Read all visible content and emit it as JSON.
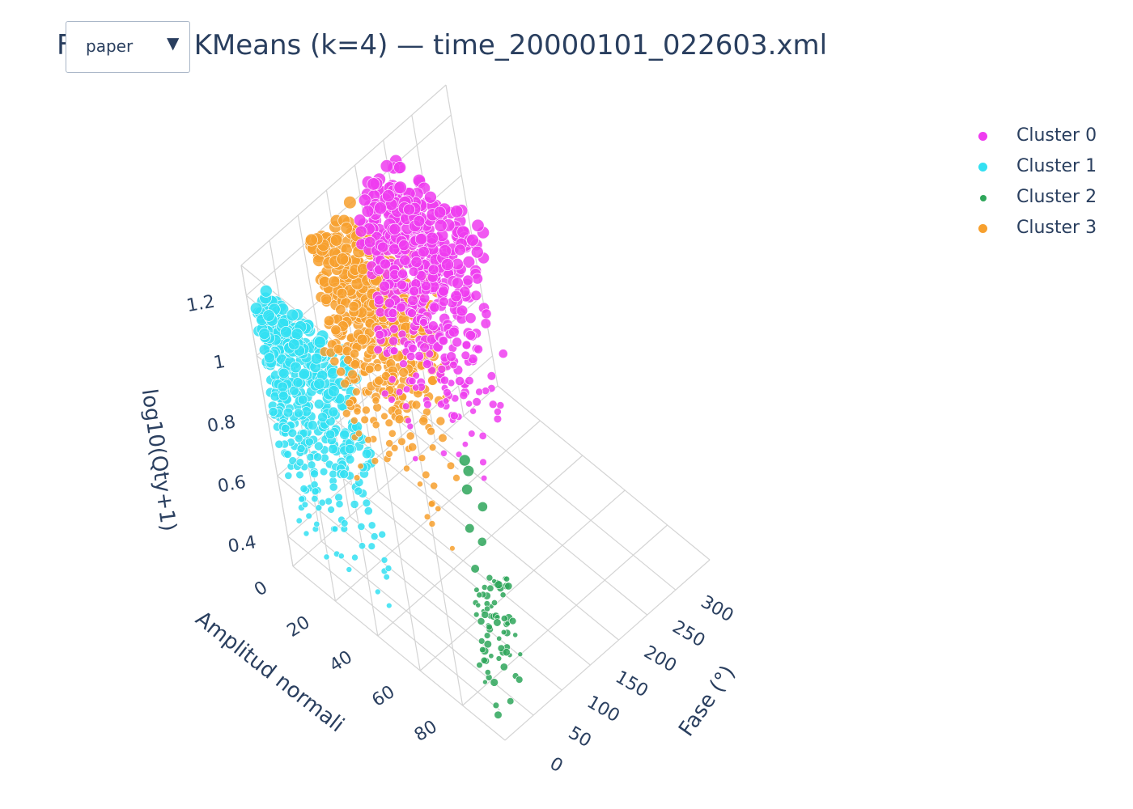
{
  "title": "P... KMeans (k=4) — time_20000101_022603.xml",
  "title_visible": "KMeans (k=4) — time_20000101_022603.xml",
  "title_prefix": "F",
  "dropdown": {
    "selected": "paper",
    "icon": "chevron-down-icon"
  },
  "colors": {
    "cluster_0": "#ef3cf0",
    "cluster_1": "#33e0f2",
    "cluster_2": "#2ea65a",
    "cluster_3": "#f7a02e",
    "grid": "#d4d4d4",
    "text": "#2a3f5f"
  },
  "legend": [
    {
      "label": "Cluster 0"
    },
    {
      "label": "Cluster 1"
    },
    {
      "label": "Cluster 2"
    },
    {
      "label": "Cluster 3"
    }
  ],
  "chart_data": {
    "type": "scatter3d",
    "title": "KMeans (k=4) — time_20000101_022603.xml",
    "xlabel": "Fase (°)",
    "ylabel": "Amplitud normali",
    "zlabel": "log10(Qty+1)",
    "x_ticks": [
      "0",
      "50",
      "100",
      "150",
      "200",
      "250",
      "300"
    ],
    "y_ticks": [
      "0",
      "20",
      "40",
      "60",
      "80"
    ],
    "z_ticks": [
      "0.4",
      "0.6",
      "0.8",
      "1",
      "1.2"
    ],
    "xlim": [
      0,
      360
    ],
    "ylim": [
      0,
      100
    ],
    "zlim": [
      0.3,
      1.3
    ],
    "legend_position": "top-right",
    "series": [
      {
        "name": "Cluster 0",
        "x_range": [
          170,
          260
        ],
        "y_range": [
          5,
          60
        ],
        "z_range": [
          0.4,
          1.26
        ]
      },
      {
        "name": "Cluster 1",
        "x_range": [
          0,
          30
        ],
        "y_range": [
          5,
          100
        ],
        "z_range": [
          0.3,
          1.2
        ]
      },
      {
        "name": "Cluster 2",
        "x_range": [
          0,
          60
        ],
        "y_range": [
          90,
          100
        ],
        "z_range": [
          0.3,
          1.2
        ]
      },
      {
        "name": "Cluster 3",
        "x_range": [
          90,
          180
        ],
        "y_range": [
          5,
          60
        ],
        "z_range": [
          0.35,
          1.24
        ]
      }
    ]
  }
}
